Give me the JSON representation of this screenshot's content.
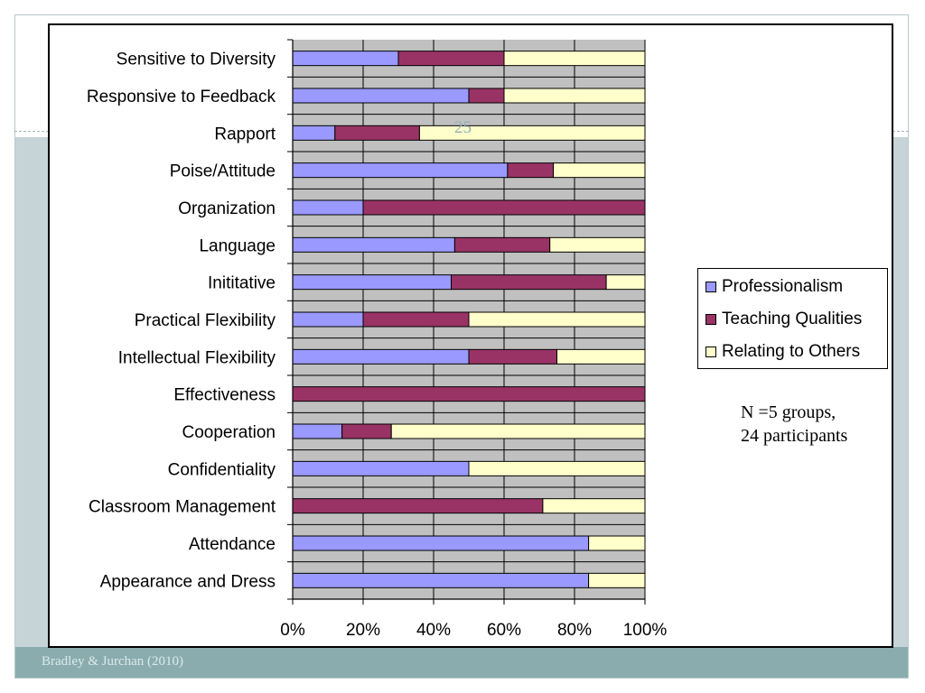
{
  "slide": {
    "slide_number": "25",
    "footer_citation": "Bradley & Jurchan (2010)",
    "note_line_1": "N =5 groups,",
    "note_line_2": "24 participants"
  },
  "colors": {
    "frame_border": "#b9c9cc",
    "side_band": "#c6d4d8",
    "footer_bar": "#8aacae",
    "plot_background": "#c0c0c0"
  },
  "chart_data": {
    "type": "bar",
    "orientation": "horizontal",
    "stacked": "percent",
    "categories": [
      "Sensitive to Diversity",
      "Responsive to Feedback",
      "Rapport",
      "Poise/Attitude",
      "Organization",
      "Language",
      "Inititative",
      "Practical Flexibility",
      "Intellectual Flexibility",
      "Effectiveness",
      "Cooperation",
      "Confidentiality",
      "Classroom Management",
      "Attendance",
      "Appearance and Dress"
    ],
    "series": [
      {
        "name": "Professionalism",
        "color": "#9999ff",
        "values": [
          30,
          50,
          12,
          61,
          20,
          46,
          45,
          20,
          50,
          0,
          14,
          50,
          0,
          84,
          84
        ]
      },
      {
        "name": "Teaching Qualities",
        "color": "#993366",
        "values": [
          30,
          10,
          24,
          13,
          80,
          27,
          44,
          30,
          25,
          100,
          14,
          0,
          71,
          0,
          0
        ]
      },
      {
        "name": "Relating to Others",
        "color": "#ffffcc",
        "values": [
          40,
          40,
          64,
          26,
          0,
          27,
          11,
          50,
          25,
          0,
          72,
          50,
          29,
          16,
          16
        ]
      }
    ],
    "x_ticks": [
      "0%",
      "20%",
      "40%",
      "60%",
      "80%",
      "100%"
    ],
    "xlim": [
      0,
      100
    ],
    "grid": "vertical",
    "legend_position": "right"
  }
}
